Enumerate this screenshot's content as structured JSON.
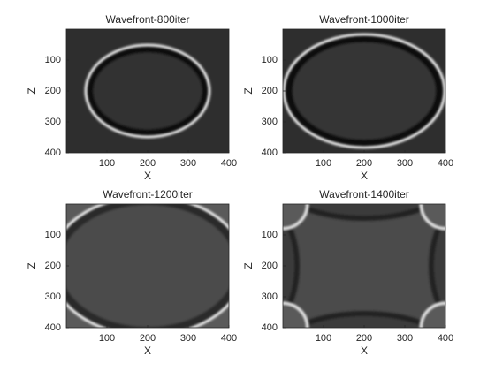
{
  "chart_data": [
    {
      "type": "image",
      "title": "Wavefront-800iter",
      "xlabel": "X",
      "ylabel": "Z",
      "xlim": [
        0,
        400
      ],
      "ylim": [
        0,
        400
      ],
      "y_reversed": true,
      "xticks": [
        100,
        200,
        300,
        400
      ],
      "yticks": [
        100,
        200,
        300,
        400
      ]
    },
    {
      "type": "image",
      "title": "Wavefront-1000iter",
      "xlabel": "X",
      "ylabel": "Z",
      "xlim": [
        0,
        400
      ],
      "ylim": [
        0,
        400
      ],
      "y_reversed": true,
      "xticks": [
        100,
        200,
        300,
        400
      ],
      "yticks": [
        100,
        200,
        300,
        400
      ]
    },
    {
      "type": "image",
      "title": "Wavefront-1200iter",
      "xlabel": "X",
      "ylabel": "Z",
      "xlim": [
        0,
        400
      ],
      "ylim": [
        0,
        400
      ],
      "y_reversed": true,
      "xticks": [
        100,
        200,
        300,
        400
      ],
      "yticks": [
        100,
        200,
        300,
        400
      ]
    },
    {
      "type": "image",
      "title": "Wavefront-1400iter",
      "xlabel": "X",
      "ylabel": "Z",
      "xlim": [
        0,
        400
      ],
      "ylim": [
        0,
        400
      ],
      "y_reversed": true,
      "xticks": [
        100,
        200,
        300,
        400
      ],
      "yticks": [
        100,
        200,
        300,
        400
      ]
    }
  ]
}
